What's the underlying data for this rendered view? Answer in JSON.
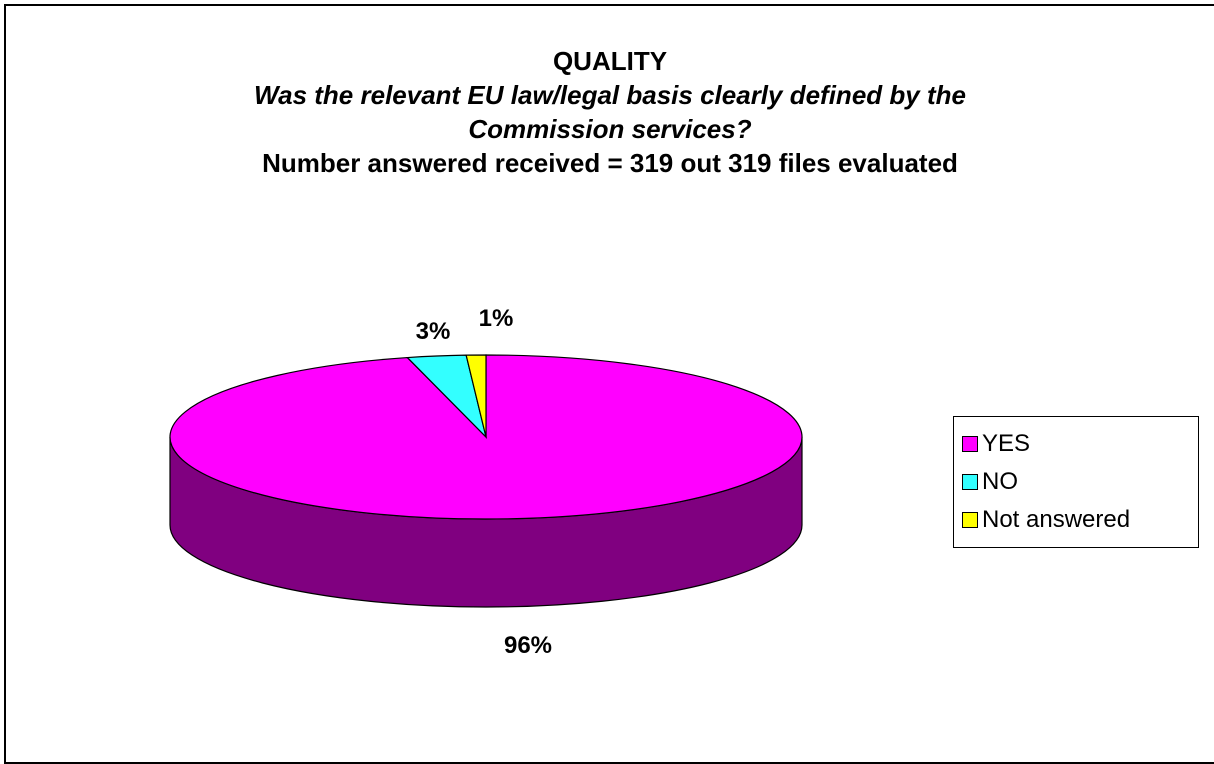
{
  "chart_data": {
    "type": "pie",
    "title": "QUALITY",
    "subtitle": "Was the relevant EU law/legal basis clearly defined by the Commission services?",
    "subtitle2": "Number answered received = 319 out 319 files evaluated",
    "series": [
      {
        "name": "YES",
        "value": 96,
        "label": "96%",
        "color": "#FF00FF",
        "side_color": "#800080"
      },
      {
        "name": "NO",
        "value": 3,
        "label": "3%",
        "color": "#33FFFF",
        "side_color": "#008080"
      },
      {
        "name": "Not answered",
        "value": 1,
        "label": "1%",
        "color": "#FFFF00",
        "side_color": "#808000"
      }
    ],
    "legend_position": "right",
    "style": "3d-pie"
  },
  "title_lines": {
    "line1": "QUALITY",
    "line2": "Was the relevant EU law/legal basis clearly defined by the",
    "line3": "Commission services?",
    "line4": "Number answered received = 319 out 319 files evaluated"
  },
  "legend": [
    {
      "label": "YES",
      "color": "#FF00FF"
    },
    {
      "label": "NO",
      "color": "#33FFFF"
    },
    {
      "label": "Not answered",
      "color": "#FFFF00"
    }
  ]
}
